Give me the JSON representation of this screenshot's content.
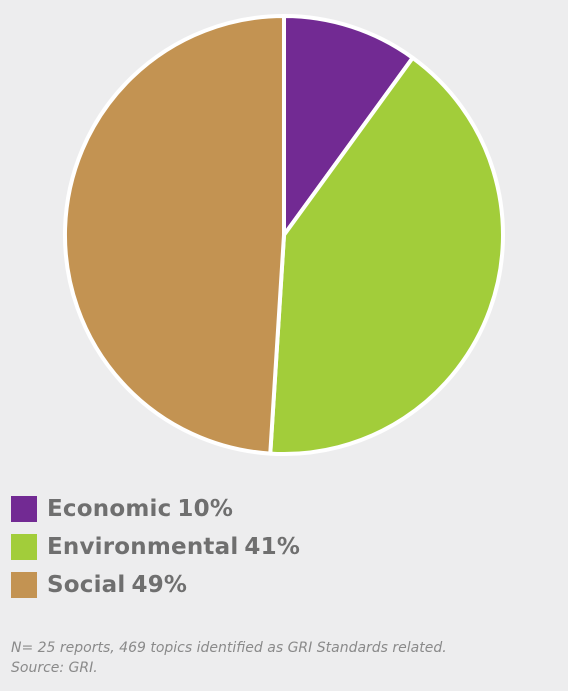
{
  "chart_data": {
    "type": "pie",
    "series": [
      {
        "label": "Economic",
        "value": 10,
        "value_label": "10%",
        "color": "#722a93"
      },
      {
        "label": "Environmental",
        "value": 41,
        "value_label": "41%",
        "color": "#a2cd3a"
      },
      {
        "label": "Social",
        "value": 49,
        "value_label": "49%",
        "color": "#c39352"
      }
    ],
    "start_angle_deg": 0,
    "direction": "clockwise",
    "legend_position": "bottom-left",
    "slice_separator_color": "#ffffff"
  },
  "note": {
    "line1": "N= 25 reports, 469 topics identified as GRI Standards related.",
    "line2": "Source: GRI."
  }
}
